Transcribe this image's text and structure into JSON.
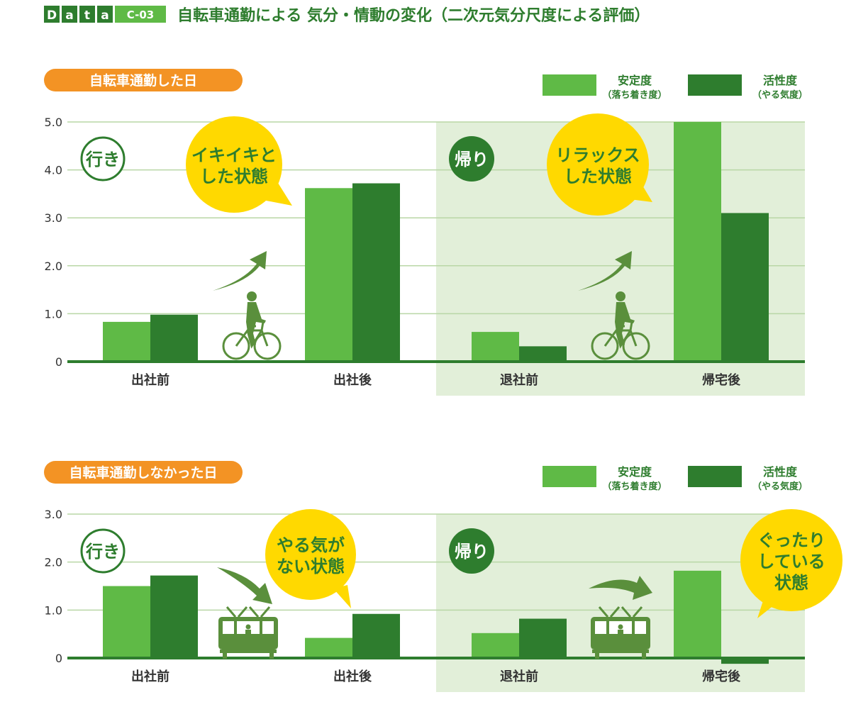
{
  "header": {
    "data_letters": [
      "D",
      "a",
      "t",
      "a"
    ],
    "code": "C-03",
    "title": "自転車通勤による 気分・情動の変化（二次元気分尺度による評価）"
  },
  "colors": {
    "light_green": "#5fba46",
    "dark_green": "#2e7d2e",
    "orange": "#f39324",
    "axis_green": "#2e7d2e",
    "bubble_yellow": "#ffd900",
    "return_bg": "#e2efd9",
    "arrow_green": "#5a8f3c",
    "text_green": "#2e7d2e",
    "label_gray": "#333333"
  },
  "chart_data": [
    {
      "type": "bar",
      "panel_label": "自転車通勤した日",
      "categories": [
        "出社前",
        "出社後",
        "退社前",
        "帰宅後"
      ],
      "series": [
        {
          "name": "安定度",
          "sub": "（落ち着き度）",
          "values": [
            0.83,
            3.62,
            0.62,
            5.0
          ]
        },
        {
          "name": "活性度",
          "sub": "（やる気度）",
          "values": [
            0.98,
            3.72,
            0.32,
            3.1
          ]
        }
      ],
      "yticks": [
        "0",
        "1.0",
        "2.0",
        "3.0",
        "4.0",
        "5.0"
      ],
      "ylim": [
        0,
        5
      ],
      "legend_position": "top-right",
      "grid": true,
      "badge_go": "行き",
      "badge_return": "帰り",
      "bubble_go": [
        "イキイキと",
        "した状態"
      ],
      "bubble_return": [
        "リラックス",
        "した状態"
      ],
      "vehicle": "bicycle"
    },
    {
      "type": "bar",
      "panel_label": "自転車通勤しなかった日",
      "categories": [
        "出社前",
        "出社後",
        "退社前",
        "帰宅後"
      ],
      "series": [
        {
          "name": "安定度",
          "sub": "（落ち着き度）",
          "values": [
            1.5,
            0.42,
            0.52,
            1.82
          ]
        },
        {
          "name": "活性度",
          "sub": "（やる気度）",
          "values": [
            1.72,
            0.92,
            0.82,
            -0.12
          ]
        }
      ],
      "yticks": [
        "0",
        "1.0",
        "2.0",
        "3.0"
      ],
      "ylim": [
        0,
        3
      ],
      "legend_position": "top-right",
      "grid": true,
      "badge_go": "行き",
      "badge_return": "帰り",
      "bubble_go": [
        "やる気が",
        "ない状態"
      ],
      "bubble_return": [
        "ぐったり",
        "している",
        "状態"
      ],
      "vehicle": "train"
    }
  ]
}
